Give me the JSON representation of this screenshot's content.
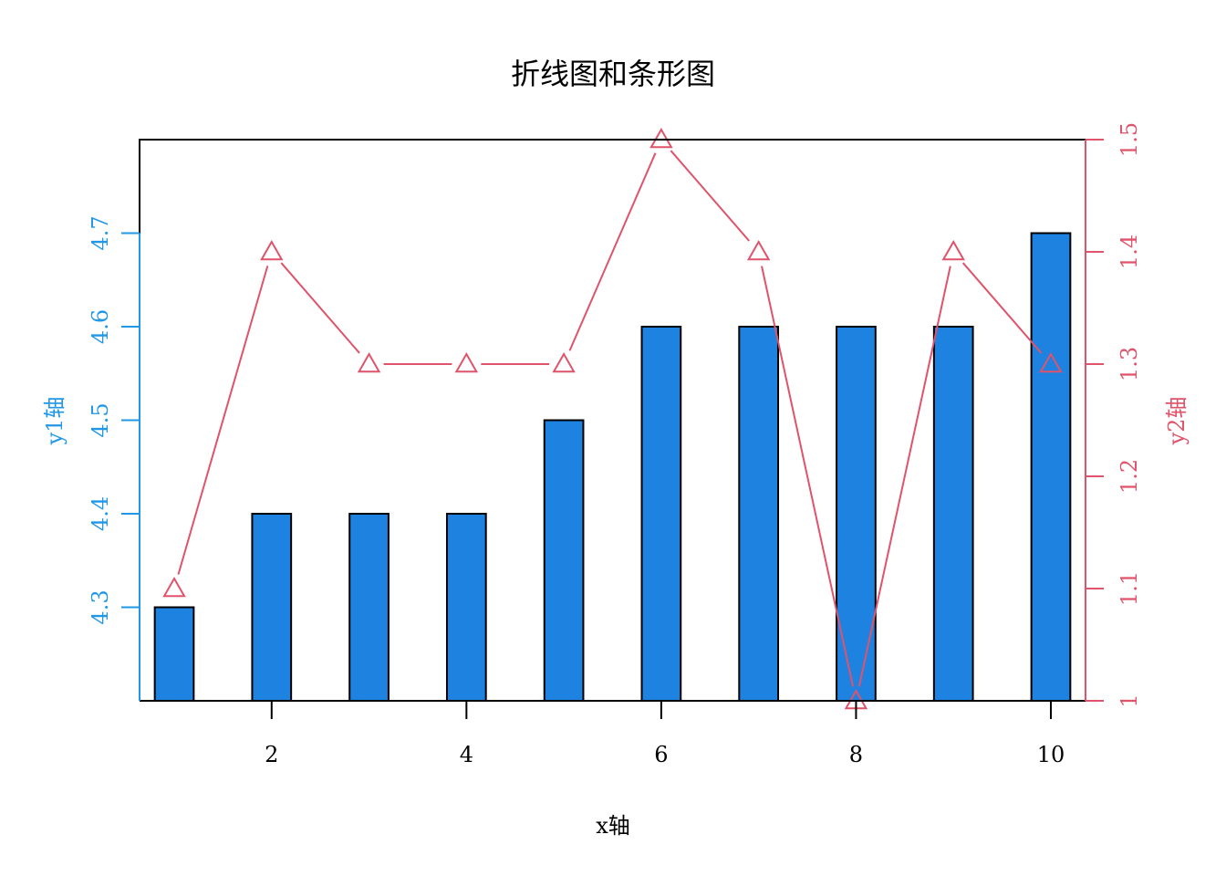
{
  "chart_data": {
    "type": "bar+line",
    "title": "折线图和条形图",
    "xlabel": "x轴",
    "y1label": "y1轴",
    "y2label": "y2轴",
    "x": [
      1,
      2,
      3,
      4,
      5,
      6,
      7,
      8,
      9,
      10
    ],
    "x_ticks": [
      2,
      4,
      6,
      8,
      10
    ],
    "xlim": [
      0.644,
      10.356
    ],
    "bars": {
      "axis": "y1",
      "values": [
        4.3,
        4.4,
        4.4,
        4.4,
        4.5,
        4.6,
        4.6,
        4.6,
        4.6,
        4.7
      ],
      "color": "#1E82E0"
    },
    "line": {
      "axis": "y2",
      "values": [
        1.1,
        1.4,
        1.3,
        1.3,
        1.3,
        1.5,
        1.4,
        1.0,
        1.4,
        1.3
      ],
      "color": "#DF536B",
      "marker": "triangle"
    },
    "y1lim": [
      4.2,
      4.8
    ],
    "y1_ticks": [
      4.3,
      4.4,
      4.5,
      4.6,
      4.7
    ],
    "y1_color": "#2297E6",
    "y2lim": [
      1.0,
      1.5
    ],
    "y2_ticks": [
      1,
      1.1,
      1.2,
      1.3,
      1.4,
      1.5
    ],
    "y2_color": "#DF536B",
    "grid": false
  }
}
